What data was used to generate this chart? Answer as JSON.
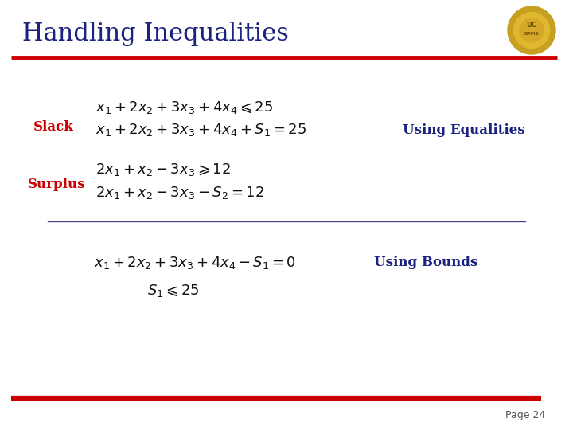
{
  "title": "Handling Inequalities",
  "title_color": "#1a237e",
  "title_fontsize": 22,
  "background_color": "#ffffff",
  "red_line_color": "#cc0000",
  "separator_line_color": "#4a4a8a",
  "slack_label": "Slack",
  "surplus_label": "Surplus",
  "slack_color": "#cc0000",
  "surplus_color": "#cc0000",
  "eq_label": "Using Equalities",
  "bounds_label": "Using Bounds",
  "label_color": "#1a237e",
  "math_color": "#111111",
  "page_text": "Page 24",
  "eq1_ineq": "$x_1 + 2x_2 + 3x_3 + 4x_4 \\leqslant 25$",
  "eq1_slack": "$x_1 + 2x_2 + 3x_3 + 4x_4 + S_1 = 25$",
  "eq2_ineq": "$2x_1 + x_2 - 3x_3 \\geqslant 12$",
  "eq2_surplus": "$2x_1 + x_2 - 3x_3 - S_2 = 12$",
  "eq3_bounds1": "$x_1 + 2x_2 + 3x_3 + 4x_4 - S_1 = 0$",
  "eq3_bounds2": "$S_1 \\leqslant 25$",
  "math_fontsize": 13,
  "label_fontsize": 12,
  "page_fontsize": 9
}
